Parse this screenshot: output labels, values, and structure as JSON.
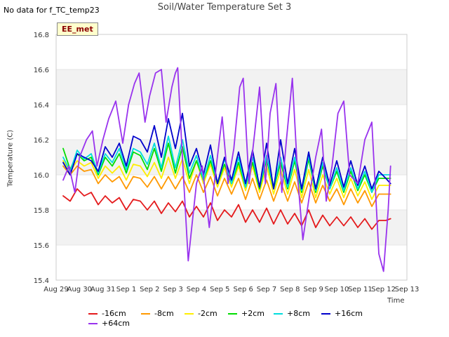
{
  "top_left_note": "No data for f_TC_temp23",
  "badge_label": "EE_met",
  "chart_data": {
    "type": "line",
    "title": "Soil/Water Temperature Set 3",
    "xlabel": "Time",
    "ylabel": "Temperature (C)",
    "xlim": [
      0,
      15
    ],
    "ylim": [
      15.4,
      16.8
    ],
    "x_tick_labels": [
      "Aug 29",
      "Aug 30",
      "Aug 31",
      "Sep 1",
      "Sep 2",
      "Sep 3",
      "Sep 4",
      "Sep 5",
      "Sep 6",
      "Sep 7",
      "Sep 8",
      "Sep 9",
      "Sep 10",
      "Sep 11",
      "Sep 12",
      "Sep 13"
    ],
    "y_ticks": [
      15.4,
      15.6,
      15.8,
      16.0,
      16.2,
      16.4,
      16.6,
      16.8
    ],
    "y_tick_labels": [
      "15.4",
      "15.6",
      "15.8",
      "16.0",
      "16.2",
      "16.4",
      "16.6",
      "16.8"
    ],
    "grid": true,
    "legend_position": "bottom",
    "series": [
      {
        "name": "-16cm",
        "color": "#e41a1c",
        "x": [
          0.3,
          0.6,
          0.9,
          1.2,
          1.5,
          1.8,
          2.1,
          2.4,
          2.7,
          3.0,
          3.3,
          3.6,
          3.9,
          4.2,
          4.5,
          4.8,
          5.1,
          5.4,
          5.7,
          6.0,
          6.3,
          6.6,
          6.9,
          7.2,
          7.5,
          7.8,
          8.1,
          8.4,
          8.7,
          9.0,
          9.3,
          9.6,
          9.9,
          10.2,
          10.5,
          10.8,
          11.1,
          11.4,
          11.7,
          12.0,
          12.3,
          12.6,
          12.9,
          13.2,
          13.5,
          13.8,
          14.1,
          14.3
        ],
        "y": [
          15.88,
          15.85,
          15.92,
          15.88,
          15.9,
          15.83,
          15.88,
          15.84,
          15.87,
          15.8,
          15.86,
          15.85,
          15.8,
          15.85,
          15.78,
          15.84,
          15.79,
          15.85,
          15.76,
          15.82,
          15.76,
          15.84,
          15.74,
          15.8,
          15.76,
          15.83,
          15.73,
          15.8,
          15.73,
          15.81,
          15.72,
          15.8,
          15.72,
          15.78,
          15.71,
          15.8,
          15.7,
          15.77,
          15.71,
          15.76,
          15.71,
          15.76,
          15.7,
          15.75,
          15.69,
          15.74,
          15.74,
          15.75
        ]
      },
      {
        "name": "-8cm",
        "color": "#ff9900",
        "x": [
          0.3,
          0.6,
          0.9,
          1.2,
          1.5,
          1.8,
          2.1,
          2.4,
          2.7,
          3.0,
          3.3,
          3.6,
          3.9,
          4.2,
          4.5,
          4.8,
          5.1,
          5.4,
          5.7,
          6.0,
          6.3,
          6.6,
          6.9,
          7.2,
          7.5,
          7.8,
          8.1,
          8.4,
          8.7,
          9.0,
          9.3,
          9.6,
          9.9,
          10.2,
          10.5,
          10.8,
          11.1,
          11.4,
          11.7,
          12.0,
          12.3,
          12.6,
          12.9,
          13.2,
          13.5,
          13.8,
          14.1,
          14.3
        ],
        "y": [
          16.05,
          16.0,
          16.05,
          16.02,
          16.03,
          15.95,
          16.0,
          15.96,
          15.99,
          15.92,
          15.99,
          15.98,
          15.93,
          15.99,
          15.92,
          15.99,
          15.92,
          15.99,
          15.9,
          16.0,
          15.9,
          15.99,
          15.88,
          15.98,
          15.89,
          15.98,
          15.86,
          15.98,
          15.86,
          15.97,
          15.85,
          15.96,
          15.85,
          15.96,
          15.84,
          15.96,
          15.84,
          15.94,
          15.85,
          15.92,
          15.83,
          15.92,
          15.84,
          15.91,
          15.82,
          15.89,
          15.89,
          15.89
        ]
      },
      {
        "name": "-2cm",
        "color": "#ffee00",
        "x": [
          0.3,
          0.6,
          0.9,
          1.2,
          1.5,
          1.8,
          2.1,
          2.4,
          2.7,
          3.0,
          3.3,
          3.6,
          3.9,
          4.2,
          4.5,
          4.8,
          5.1,
          5.4,
          5.7,
          6.0,
          6.3,
          6.6,
          6.9,
          7.2,
          7.5,
          7.8,
          8.1,
          8.4,
          8.7,
          9.0,
          9.3,
          9.6,
          9.9,
          10.2,
          10.5,
          10.8,
          11.1,
          11.4,
          11.7,
          12.0,
          12.3,
          12.6,
          12.9,
          13.2,
          13.5,
          13.8,
          14.1,
          14.3
        ],
        "y": [
          16.08,
          16.02,
          16.08,
          16.05,
          16.07,
          15.98,
          16.05,
          16.01,
          16.05,
          15.97,
          16.06,
          16.05,
          15.99,
          16.07,
          15.98,
          16.1,
          15.98,
          16.09,
          15.95,
          16.08,
          15.95,
          16.06,
          15.93,
          16.04,
          15.93,
          16.05,
          15.91,
          16.05,
          15.9,
          16.05,
          15.89,
          16.03,
          15.89,
          16.03,
          15.87,
          16.03,
          15.87,
          16.0,
          15.89,
          15.98,
          15.87,
          15.98,
          15.88,
          15.96,
          15.86,
          15.94,
          15.94,
          15.94
        ]
      },
      {
        "name": "+2cm",
        "color": "#00dd00",
        "x": [
          0.3,
          0.6,
          0.9,
          1.2,
          1.5,
          1.8,
          2.1,
          2.4,
          2.7,
          3.0,
          3.3,
          3.6,
          3.9,
          4.2,
          4.5,
          4.8,
          5.1,
          5.4,
          5.7,
          6.0,
          6.3,
          6.6,
          6.9,
          7.2,
          7.5,
          7.8,
          8.1,
          8.4,
          8.7,
          9.0,
          9.3,
          9.6,
          9.9,
          10.2,
          10.5,
          10.8,
          11.1,
          11.4,
          11.7,
          12.0,
          12.3,
          12.6,
          12.9,
          13.2,
          13.5,
          13.8,
          14.1,
          14.3
        ],
        "y": [
          16.15,
          16.03,
          16.12,
          16.08,
          16.1,
          16.0,
          16.1,
          16.05,
          16.12,
          16.01,
          16.13,
          16.11,
          16.03,
          16.15,
          16.02,
          16.18,
          16.01,
          16.16,
          15.98,
          16.08,
          15.97,
          16.08,
          15.95,
          16.06,
          15.95,
          16.07,
          15.93,
          16.07,
          15.92,
          16.09,
          15.92,
          16.07,
          15.92,
          16.08,
          15.9,
          16.09,
          15.9,
          16.05,
          15.92,
          16.02,
          15.9,
          16.02,
          15.91,
          16.0,
          15.9,
          15.98,
          15.98,
          15.98
        ]
      },
      {
        "name": "+8cm",
        "color": "#00dddd",
        "x": [
          0.3,
          0.6,
          0.9,
          1.2,
          1.5,
          1.8,
          2.1,
          2.4,
          2.7,
          3.0,
          3.3,
          3.6,
          3.9,
          4.2,
          4.5,
          4.8,
          5.1,
          5.4,
          5.7,
          6.0,
          6.3,
          6.6,
          6.9,
          7.2,
          7.5,
          7.8,
          8.1,
          8.4,
          8.7,
          9.0,
          9.3,
          9.6,
          9.9,
          10.2,
          10.5,
          10.8,
          11.1,
          11.4,
          11.7,
          12.0,
          12.3,
          12.6,
          12.9,
          13.2,
          13.5,
          13.8,
          14.1,
          14.3
        ],
        "y": [
          16.1,
          16.02,
          16.14,
          16.09,
          16.12,
          16.01,
          16.12,
          16.07,
          16.15,
          16.03,
          16.15,
          16.13,
          16.06,
          16.18,
          16.04,
          16.22,
          16.04,
          16.2,
          16.01,
          16.11,
          15.97,
          16.11,
          15.95,
          16.09,
          15.95,
          16.1,
          15.93,
          16.1,
          15.93,
          16.11,
          15.93,
          16.1,
          15.93,
          16.1,
          15.91,
          16.11,
          15.91,
          16.07,
          15.92,
          16.04,
          15.91,
          16.04,
          15.92,
          16.02,
          15.9,
          16.0,
          16.0,
          16.0
        ]
      },
      {
        "name": "+16cm",
        "color": "#0000cc",
        "x": [
          0.3,
          0.6,
          0.9,
          1.2,
          1.5,
          1.8,
          2.1,
          2.4,
          2.7,
          3.0,
          3.3,
          3.6,
          3.9,
          4.2,
          4.5,
          4.8,
          5.1,
          5.4,
          5.7,
          6.0,
          6.3,
          6.6,
          6.9,
          7.2,
          7.5,
          7.8,
          8.1,
          8.4,
          8.7,
          9.0,
          9.3,
          9.6,
          9.9,
          10.2,
          10.5,
          10.8,
          11.1,
          11.4,
          11.7,
          12.0,
          12.3,
          12.6,
          12.9,
          13.2,
          13.5,
          13.8,
          14.1,
          14.3
        ],
        "y": [
          16.07,
          16.0,
          16.12,
          16.1,
          16.08,
          16.02,
          16.16,
          16.1,
          16.18,
          16.05,
          16.22,
          16.2,
          16.13,
          16.28,
          16.1,
          16.32,
          16.15,
          16.35,
          16.05,
          16.15,
          16.0,
          16.17,
          15.95,
          16.1,
          15.97,
          16.13,
          15.95,
          16.14,
          15.93,
          16.18,
          15.92,
          16.2,
          15.95,
          16.15,
          15.92,
          16.13,
          15.92,
          16.1,
          15.94,
          16.08,
          15.93,
          16.08,
          15.94,
          16.05,
          15.92,
          16.02,
          15.98,
          15.95
        ]
      },
      {
        "name": "+64cm",
        "color": "#9933ee",
        "x": [
          0.3,
          0.55,
          0.8,
          1.0,
          1.3,
          1.55,
          1.75,
          2.0,
          2.25,
          2.55,
          2.85,
          3.1,
          3.35,
          3.55,
          3.8,
          4.0,
          4.25,
          4.5,
          4.7,
          4.95,
          5.1,
          5.2,
          5.4,
          5.65,
          5.8,
          6.0,
          6.25,
          6.55,
          6.85,
          7.1,
          7.35,
          7.6,
          7.85,
          8.0,
          8.25,
          8.5,
          8.7,
          8.95,
          9.15,
          9.4,
          9.65,
          9.85,
          10.1,
          10.35,
          10.55,
          10.85,
          11.1,
          11.35,
          11.55,
          11.8,
          12.05,
          12.3,
          12.55,
          12.9,
          13.2,
          13.5,
          13.8,
          14.0,
          14.2,
          14.3
        ],
        "y": [
          15.97,
          16.05,
          15.9,
          16.1,
          16.2,
          16.25,
          16.05,
          16.2,
          16.32,
          16.42,
          16.18,
          16.4,
          16.52,
          16.58,
          16.3,
          16.45,
          16.58,
          16.6,
          16.3,
          16.5,
          16.58,
          16.61,
          16.1,
          15.51,
          15.7,
          15.95,
          16.05,
          15.7,
          16.05,
          16.33,
          15.95,
          16.15,
          16.5,
          16.55,
          15.95,
          16.25,
          16.5,
          15.95,
          16.35,
          16.52,
          15.9,
          16.2,
          16.55,
          15.95,
          15.63,
          15.9,
          16.1,
          16.26,
          15.85,
          16.05,
          16.35,
          16.42,
          16.0,
          15.95,
          16.2,
          16.3,
          15.55,
          15.45,
          15.8,
          16.05
        ]
      }
    ]
  }
}
